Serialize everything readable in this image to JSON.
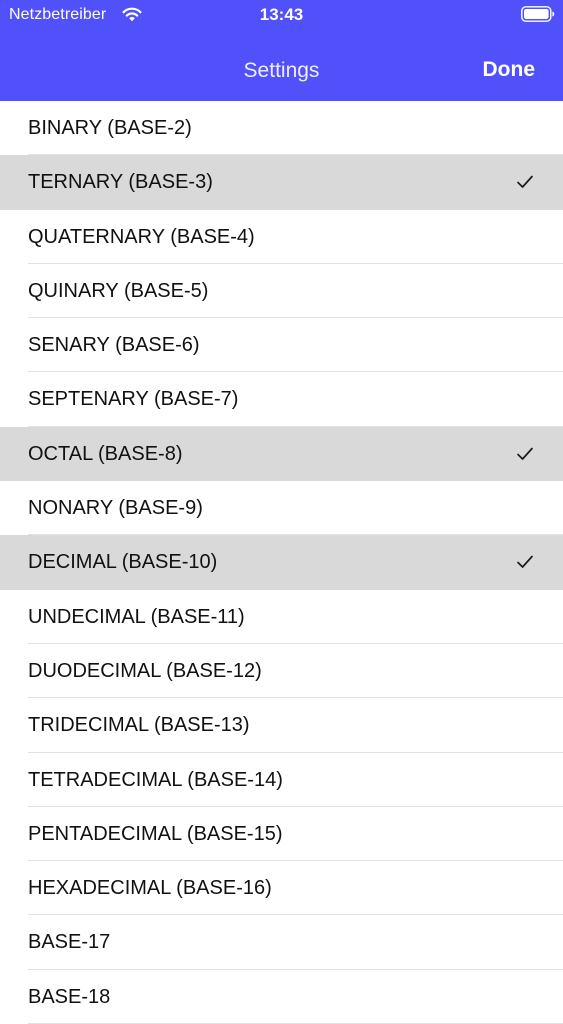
{
  "status_bar": {
    "carrier": "Netzbetreiber",
    "time": "13:43",
    "wifi_icon": "wifi-icon",
    "battery_icon": "battery-icon"
  },
  "nav": {
    "title": "Settings",
    "done_label": "Done"
  },
  "colors": {
    "header": "#5151fb",
    "selected_row": "#d9d9d9",
    "separator": "#e2e2e6"
  },
  "bases": [
    {
      "label": "BINARY (BASE-2)",
      "selected": false
    },
    {
      "label": "TERNARY (BASE-3)",
      "selected": true
    },
    {
      "label": "QUATERNARY (BASE-4)",
      "selected": false
    },
    {
      "label": "QUINARY (BASE-5)",
      "selected": false
    },
    {
      "label": "SENARY (BASE-6)",
      "selected": false
    },
    {
      "label": "SEPTENARY (BASE-7)",
      "selected": false
    },
    {
      "label": "OCTAL (BASE-8)",
      "selected": true
    },
    {
      "label": "NONARY (BASE-9)",
      "selected": false
    },
    {
      "label": "DECIMAL (BASE-10)",
      "selected": true
    },
    {
      "label": "UNDECIMAL (BASE-11)",
      "selected": false
    },
    {
      "label": "DUODECIMAL (BASE-12)",
      "selected": false
    },
    {
      "label": "TRIDECIMAL (BASE-13)",
      "selected": false
    },
    {
      "label": "TETRADECIMAL (BASE-14)",
      "selected": false
    },
    {
      "label": "PENTADECIMAL (BASE-15)",
      "selected": false
    },
    {
      "label": "HEXADECIMAL (BASE-16)",
      "selected": false
    },
    {
      "label": "BASE-17",
      "selected": false
    },
    {
      "label": "BASE-18",
      "selected": false
    }
  ]
}
